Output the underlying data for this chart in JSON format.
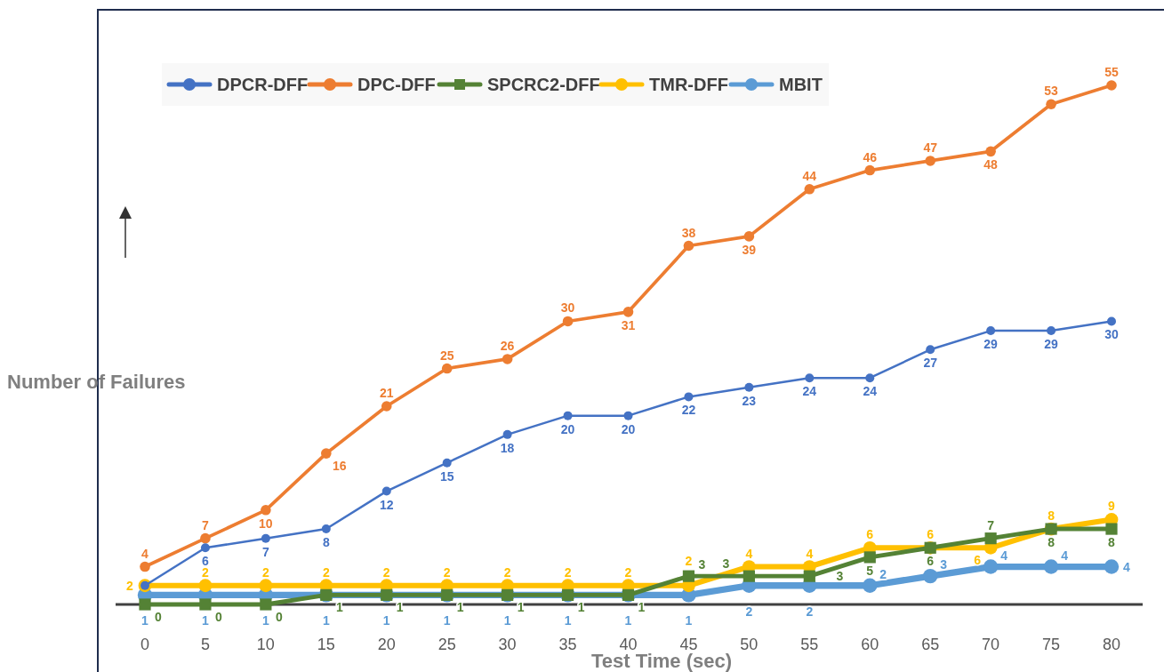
{
  "chart_data": {
    "type": "line",
    "xlabel": "Test Time (sec)",
    "ylabel": "Number of Failures",
    "categories": [
      "0",
      "5",
      "10",
      "15",
      "20",
      "25",
      "30",
      "35",
      "40",
      "45",
      "50",
      "55",
      "60",
      "65",
      "70",
      "75",
      "80"
    ],
    "tick_labels": "x",
    "legend": "top",
    "marker": "circle",
    "series": [
      {
        "name": "DPCR-DFF",
        "color": "#4472c4",
        "values": [
          2,
          6,
          7,
          8,
          12,
          15,
          18,
          20,
          20,
          22,
          23,
          24,
          24,
          27,
          29,
          29,
          30
        ],
        "value_labels": [
          null,
          "6",
          "7",
          "8",
          "12",
          "15",
          "18",
          "20",
          "20",
          "22",
          "23",
          "24",
          "24",
          "27",
          "29",
          "29",
          "30"
        ]
      },
      {
        "name": "DPC-DFF",
        "color": "#ed7d31",
        "values": [
          4,
          7,
          10,
          16,
          21,
          25,
          26,
          30,
          31,
          38,
          39,
          44,
          46,
          47,
          48,
          53,
          55
        ],
        "value_labels": [
          "4",
          "7",
          "10",
          "16",
          "21",
          "25",
          "26",
          "30",
          "31",
          "38",
          "39",
          "44",
          "46",
          "47",
          "48",
          "53",
          "55"
        ]
      },
      {
        "name": "SPCRC2-DFF",
        "color": "#548235",
        "marker": "square",
        "values": [
          0,
          0,
          0,
          1,
          1,
          1,
          1,
          1,
          1,
          3,
          3,
          3,
          5,
          6,
          7,
          8,
          8
        ],
        "value_labels": [
          "0",
          "0",
          "0",
          "1",
          "1",
          "1",
          "1",
          "1",
          "1",
          "3",
          "3",
          "3",
          "5",
          "6",
          "7",
          "8",
          "8"
        ]
      },
      {
        "name": "TMR-DFF",
        "color": "#ffc000",
        "values": [
          2,
          2,
          2,
          2,
          2,
          2,
          2,
          2,
          2,
          2,
          4,
          4,
          6,
          6,
          6,
          8,
          9
        ],
        "value_labels": [
          "2",
          "2",
          "2",
          "2",
          "2",
          "2",
          "2",
          "2",
          "2",
          "2",
          "4",
          "4",
          "6",
          "6",
          "6",
          "8",
          "9"
        ]
      },
      {
        "name": "MBIT",
        "color": "#5b9bd5",
        "values": [
          1,
          1,
          1,
          1,
          1,
          1,
          1,
          1,
          1,
          1,
          2,
          2,
          2,
          3,
          4,
          4,
          4
        ],
        "value_labels": [
          "1",
          "1",
          "1",
          "1",
          "1",
          "1",
          "1",
          "1",
          "1",
          "1",
          "2",
          "2",
          "2",
          "3",
          "4",
          "4",
          "4"
        ]
      }
    ]
  }
}
